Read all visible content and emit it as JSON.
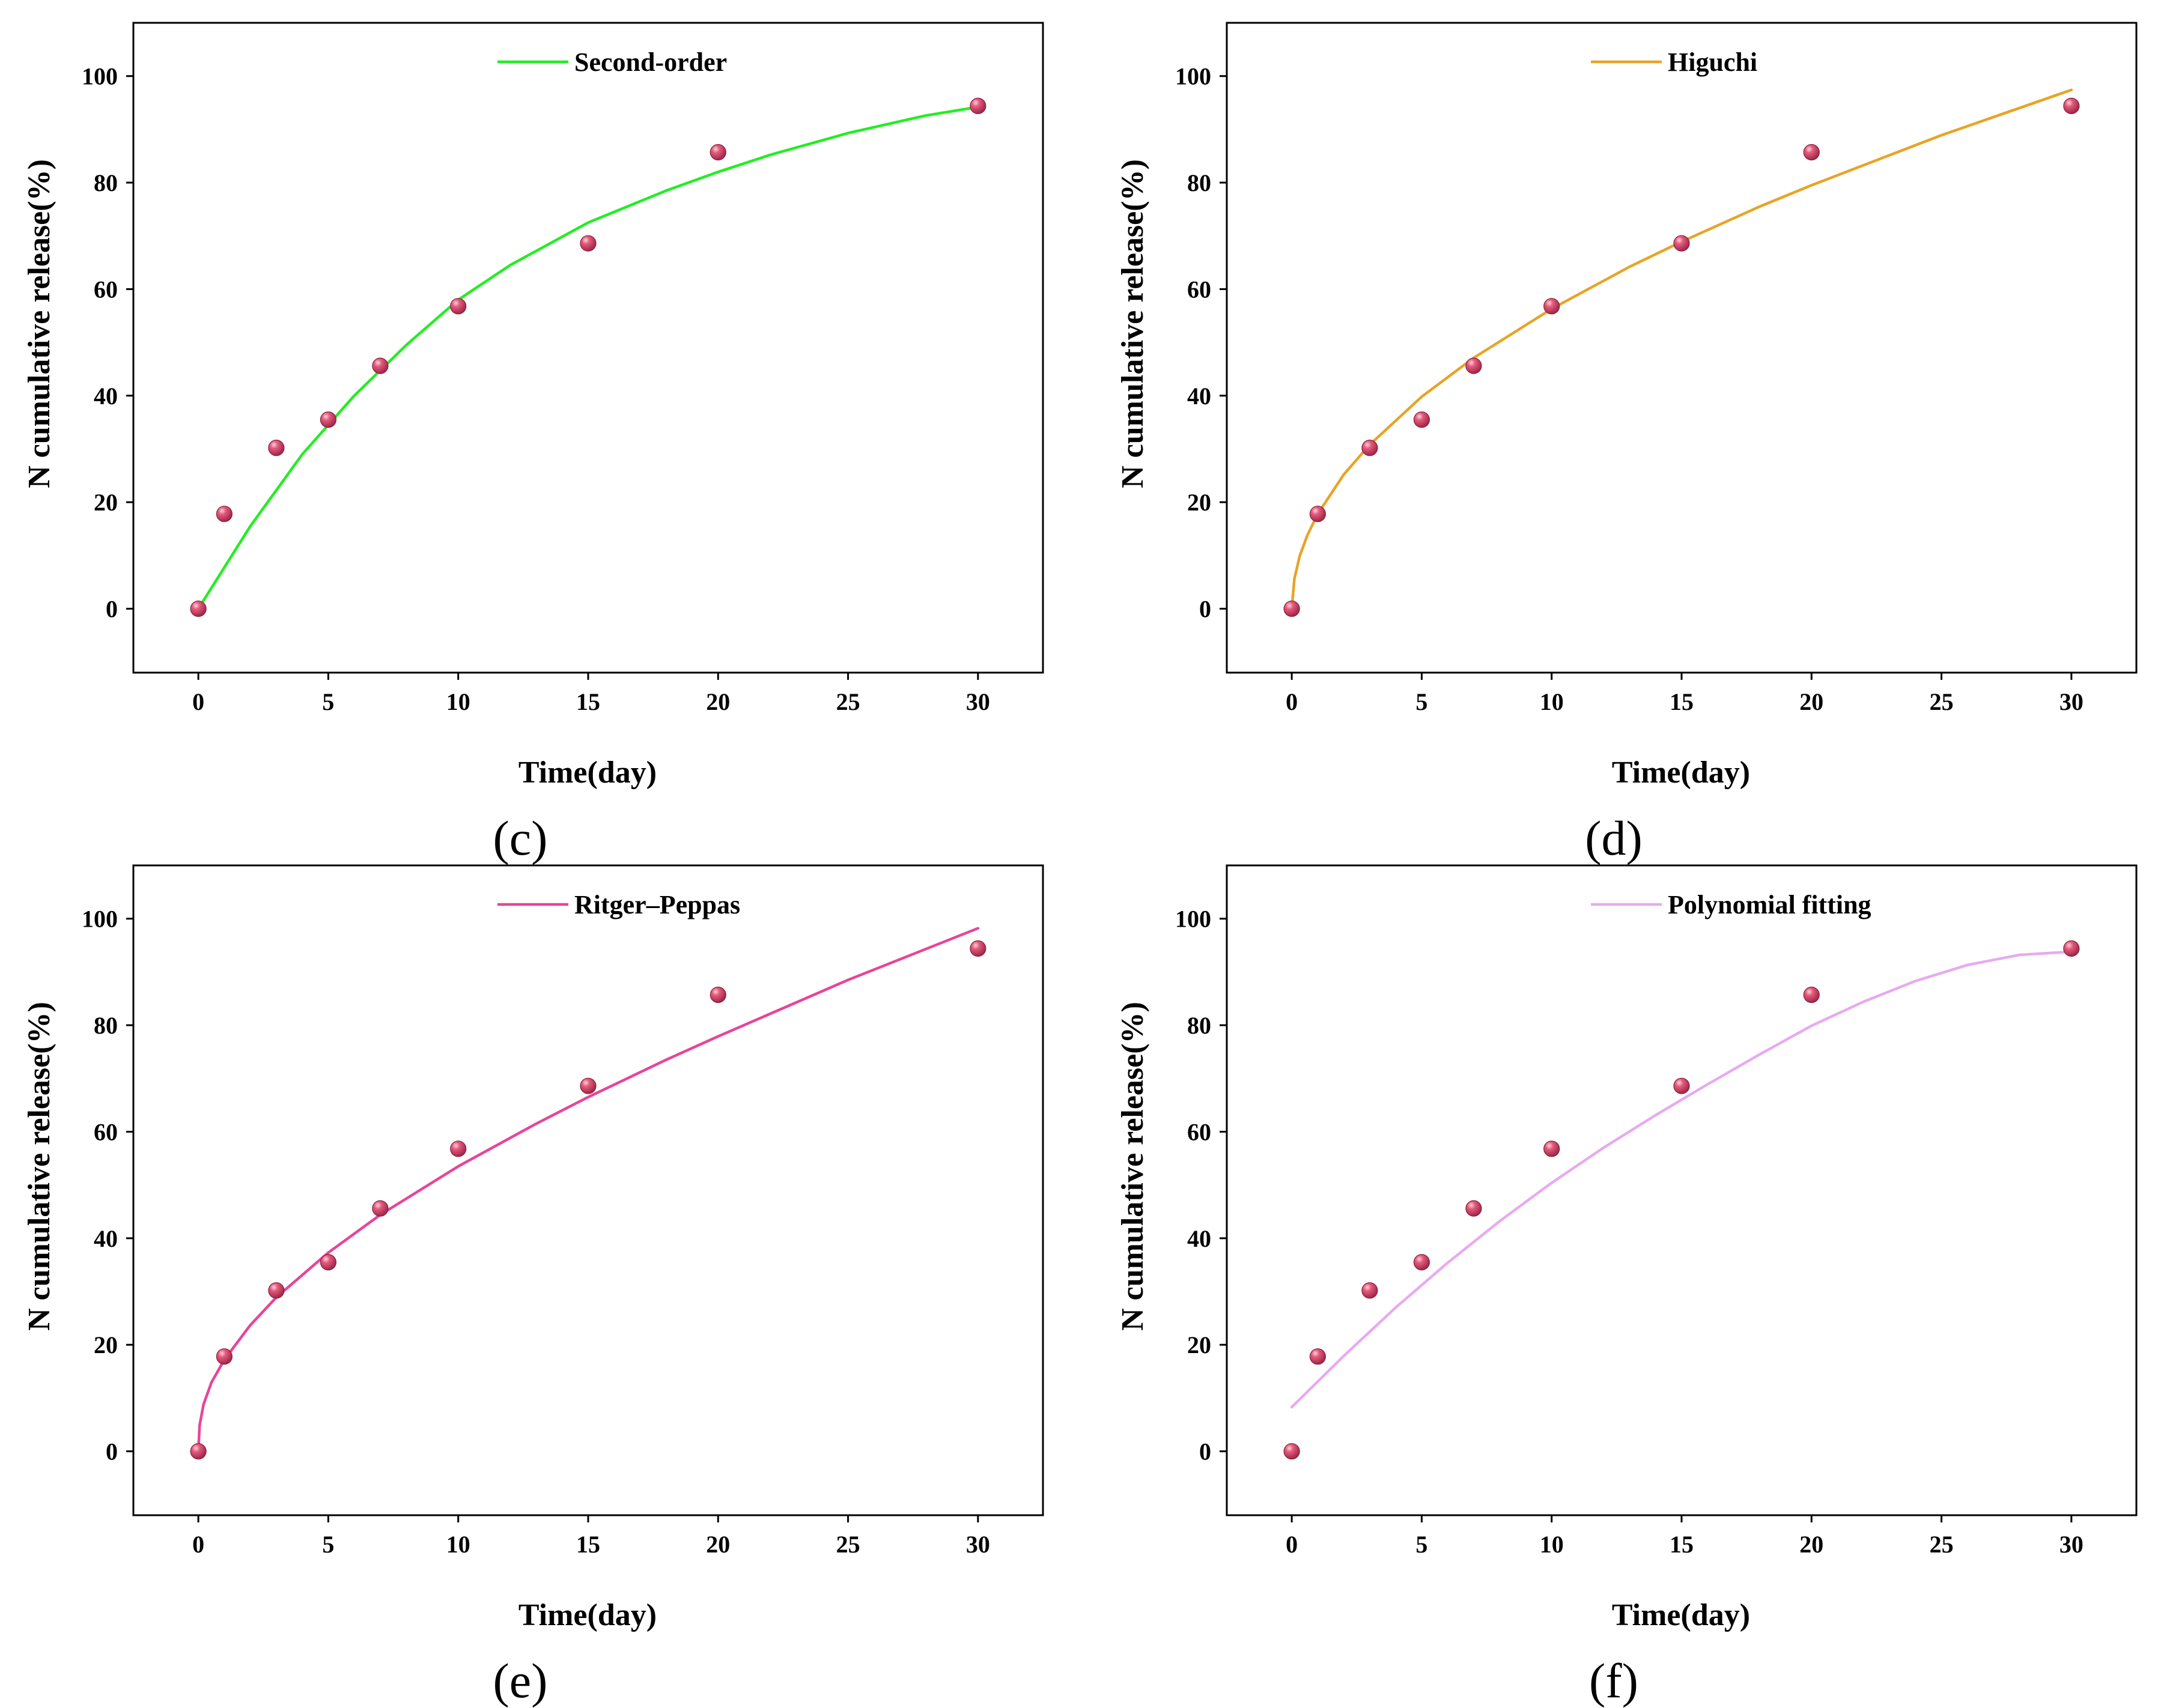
{
  "chart_data": [
    {
      "type": "scatter",
      "panel": "(c)",
      "xlabel": "Time(day)",
      "ylabel": "N cumulative release(%)",
      "xlim": [
        -2.5,
        32.5
      ],
      "ylim": [
        -12,
        110
      ],
      "xticks": [
        0,
        5,
        10,
        15,
        20,
        25,
        30
      ],
      "yticks": [
        0,
        20,
        40,
        60,
        80,
        100
      ],
      "points": {
        "x": [
          0,
          1,
          3,
          5,
          7,
          10,
          15,
          20,
          30
        ],
        "y": [
          0,
          17.8,
          30.2,
          35.5,
          45.6,
          56.8,
          68.6,
          85.7,
          94.4
        ]
      },
      "fit": {
        "name": "Second-order",
        "color": "#22ee22",
        "x": [
          0,
          2,
          4,
          6,
          8,
          10,
          12,
          15,
          18,
          20,
          22,
          25,
          28,
          30
        ],
        "y": [
          0,
          15.5,
          29,
          40,
          49.5,
          58,
          64.5,
          72.5,
          78.5,
          82,
          85.2,
          89.3,
          92.6,
          94.2
        ]
      }
    },
    {
      "type": "scatter",
      "panel": "(d)",
      "xlabel": "Time(day)",
      "ylabel": "N cumulative release(%)",
      "xlim": [
        -2.5,
        32.5
      ],
      "ylim": [
        -12,
        110
      ],
      "xticks": [
        0,
        5,
        10,
        15,
        20,
        25,
        30
      ],
      "yticks": [
        0,
        20,
        40,
        60,
        80,
        100
      ],
      "points": {
        "x": [
          0,
          1,
          3,
          5,
          7,
          10,
          15,
          20,
          30
        ],
        "y": [
          0,
          17.8,
          30.2,
          35.5,
          45.6,
          56.8,
          68.6,
          85.7,
          94.4
        ]
      },
      "fit": {
        "name": "Higuchi",
        "color": "#e8a426",
        "x": [
          0,
          0.1,
          0.3,
          0.6,
          1,
          2,
          3,
          5,
          7,
          10,
          13,
          15,
          18,
          20,
          25,
          30
        ],
        "y": [
          0,
          5.6,
          9.8,
          13.8,
          17.8,
          25.2,
          30.8,
          39.8,
          47.1,
          56.3,
          64.2,
          68.9,
          75.5,
          79.5,
          88.9,
          97.4
        ]
      }
    },
    {
      "type": "scatter",
      "panel": "(e)",
      "xlabel": "Time(day)",
      "ylabel": "N cumulative release(%)",
      "xlim": [
        -2.5,
        32.5
      ],
      "ylim": [
        -12,
        110
      ],
      "xticks": [
        0,
        5,
        10,
        15,
        20,
        25,
        30
      ],
      "yticks": [
        0,
        20,
        40,
        60,
        80,
        100
      ],
      "points": {
        "x": [
          0,
          1,
          3,
          5,
          7,
          10,
          15,
          20,
          30
        ],
        "y": [
          0,
          17.8,
          30.2,
          35.5,
          45.6,
          56.8,
          68.6,
          85.7,
          94.4
        ]
      },
      "fit": {
        "name": "Ritger–Peppas",
        "color": "#e8449a",
        "x": [
          0,
          0.05,
          0.2,
          0.5,
          1,
          2,
          3,
          5,
          7,
          10,
          13,
          15,
          18,
          20,
          25,
          30
        ],
        "y": [
          0,
          4.9,
          8.8,
          12.9,
          17.2,
          23.7,
          28.9,
          37.3,
          44.4,
          53.5,
          61.5,
          66.5,
          73.5,
          77.9,
          88.5,
          98.2
        ]
      }
    },
    {
      "type": "scatter",
      "panel": "(f)",
      "xlabel": "Time(day)",
      "ylabel": "N cumulative release(%)",
      "xlim": [
        -2.5,
        32.5
      ],
      "ylim": [
        -12,
        110
      ],
      "xticks": [
        0,
        5,
        10,
        15,
        20,
        25,
        30
      ],
      "yticks": [
        0,
        20,
        40,
        60,
        80,
        100
      ],
      "points": {
        "x": [
          0,
          1,
          3,
          5,
          7,
          10,
          15,
          20,
          30
        ],
        "y": [
          0,
          17.8,
          30.2,
          35.5,
          45.6,
          56.8,
          68.6,
          85.7,
          94.4
        ]
      },
      "fit": {
        "name": "Polynomial fitting",
        "color": "#e8aaf0",
        "x": [
          0,
          2,
          4,
          6,
          8,
          10,
          12,
          14,
          16,
          18,
          20,
          22,
          24,
          26,
          28,
          30
        ],
        "y": [
          8.3,
          17.9,
          27,
          35.4,
          43.2,
          50.4,
          57,
          63.1,
          68.9,
          74.5,
          79.9,
          84.4,
          88.3,
          91.3,
          93.2,
          93.8
        ]
      }
    }
  ],
  "marker_color": "#d24a6a"
}
